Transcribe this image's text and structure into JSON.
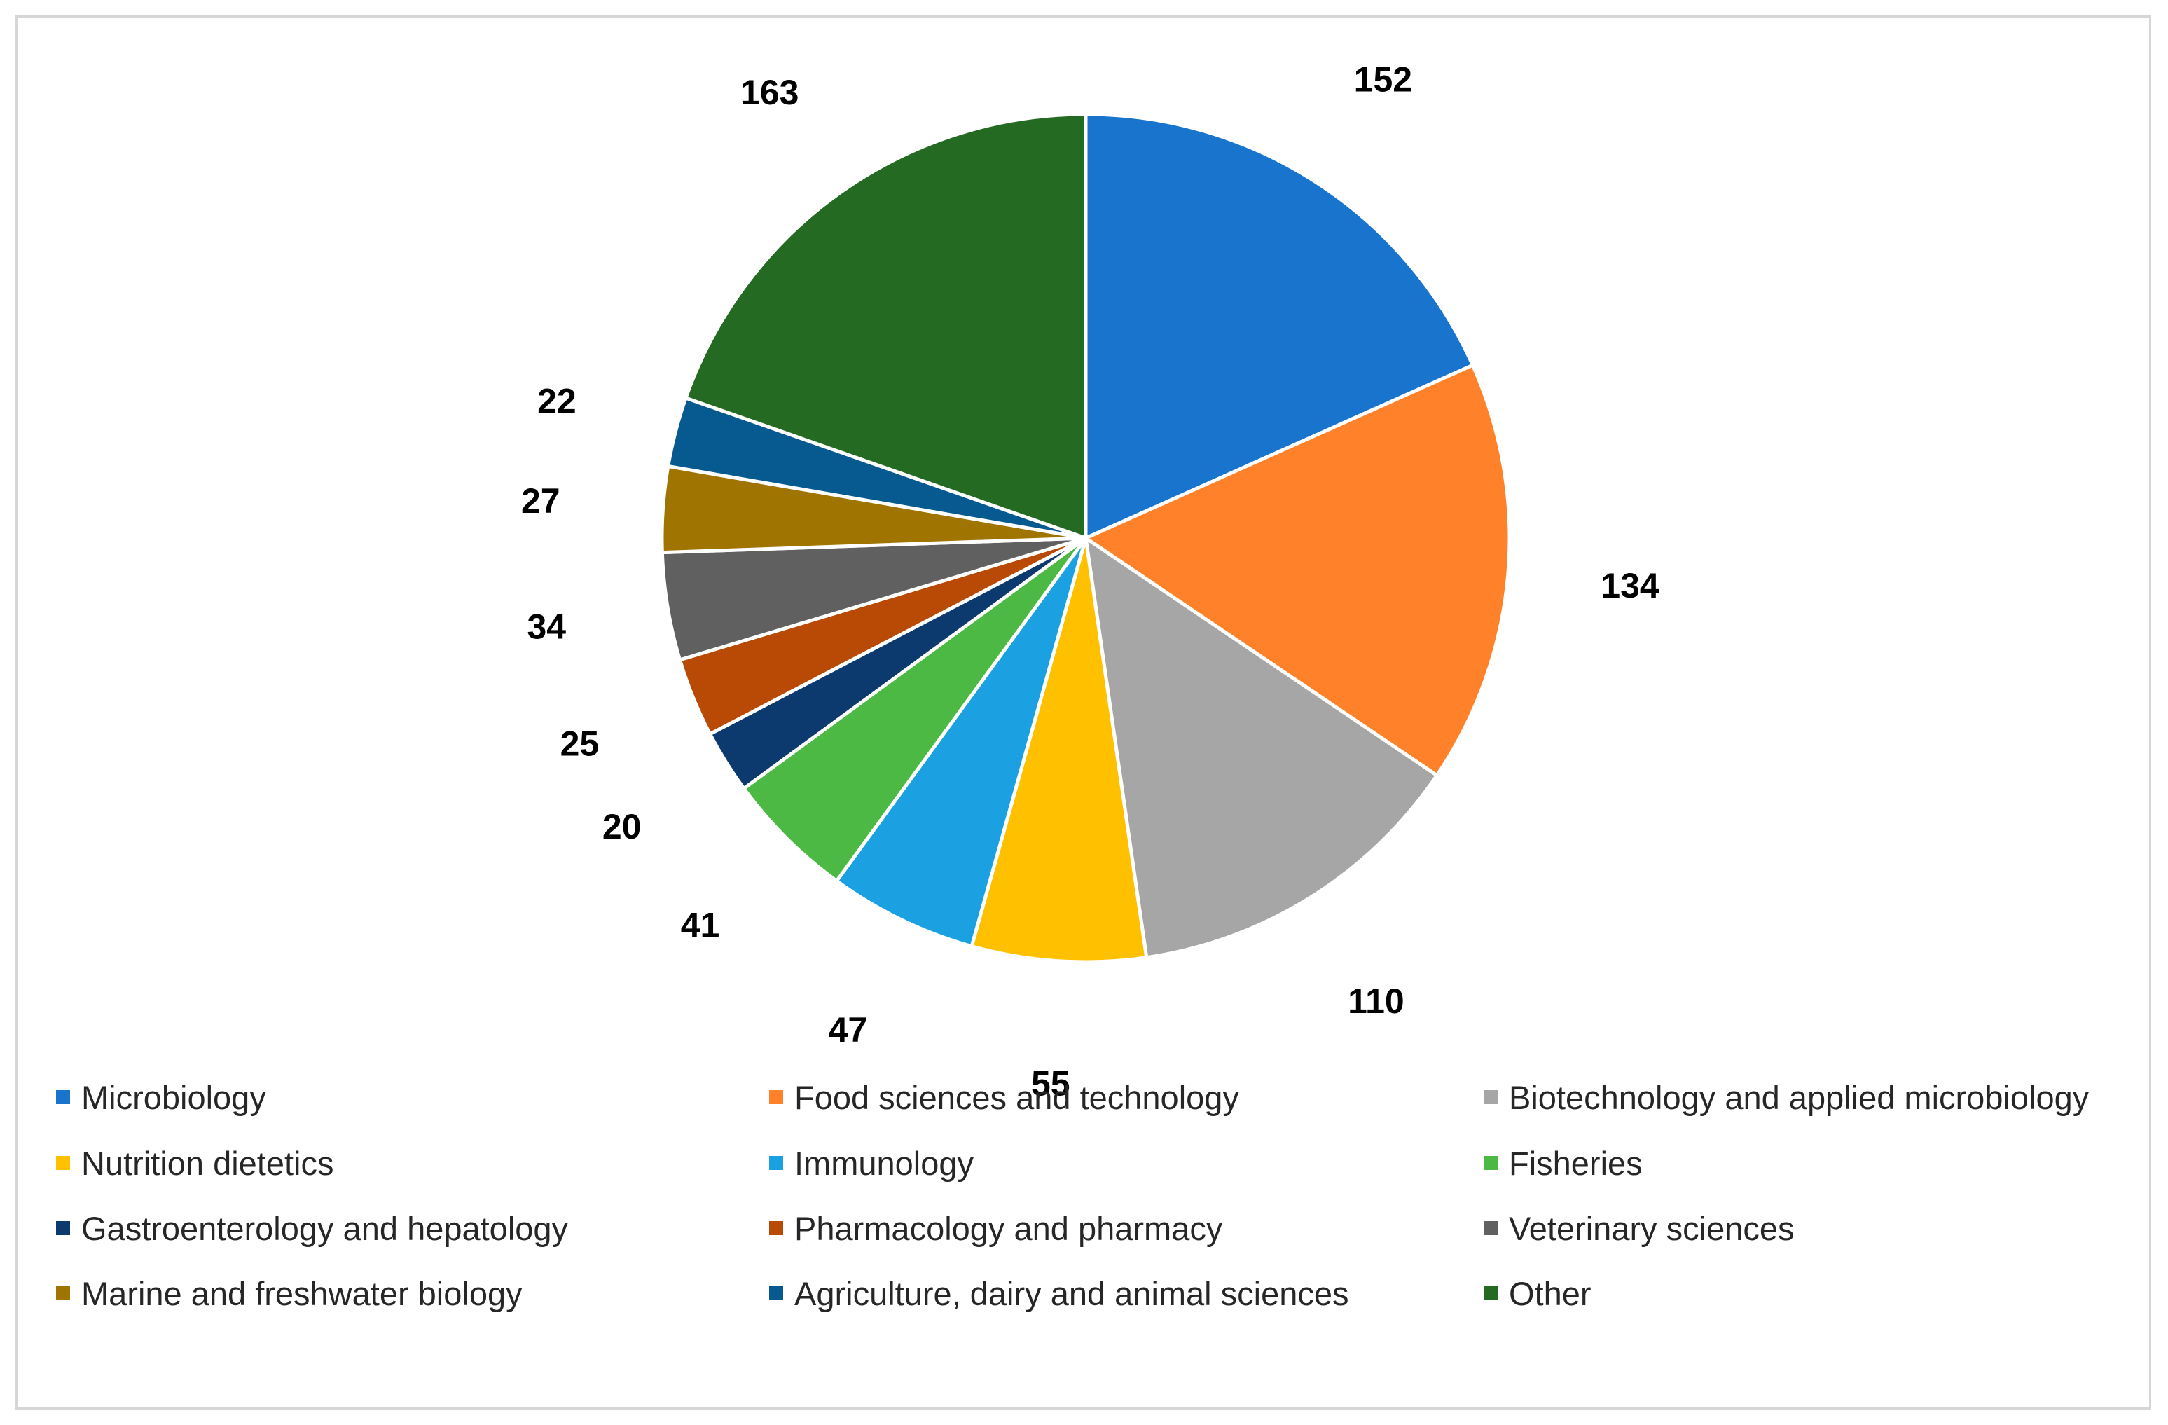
{
  "chart_data": {
    "type": "pie",
    "title": "",
    "start_angle_deg": 0,
    "direction": "clockwise",
    "legend_position": "bottom",
    "slices": [
      {
        "label": "Microbiology",
        "value": 152,
        "color": "#1874cd"
      },
      {
        "label": "Food sciences and technology",
        "value": 134,
        "color": "#ff822a"
      },
      {
        "label": "Biotechnology and applied microbiology",
        "value": 110,
        "color": "#a6a6a6"
      },
      {
        "label": "Nutrition dietetics",
        "value": 55,
        "color": "#ffc000"
      },
      {
        "label": "Immunology",
        "value": 47,
        "color": "#1ba1e2"
      },
      {
        "label": "Fisheries",
        "value": 41,
        "color": "#4cb944"
      },
      {
        "label": "Gastroenterology and hepatology",
        "value": 20,
        "color": "#0d3a6e"
      },
      {
        "label": "Pharmacology and pharmacy",
        "value": 25,
        "color": "#b84a06"
      },
      {
        "label": "Veterinary sciences",
        "value": 34,
        "color": "#606060"
      },
      {
        "label": "Marine and freshwater biology",
        "value": 27,
        "color": "#a07400"
      },
      {
        "label": "Agriculture, dairy and animal sciences",
        "value": 22,
        "color": "#075a8f"
      },
      {
        "label": "Other",
        "value": 163,
        "color": "#256a22"
      }
    ]
  }
}
